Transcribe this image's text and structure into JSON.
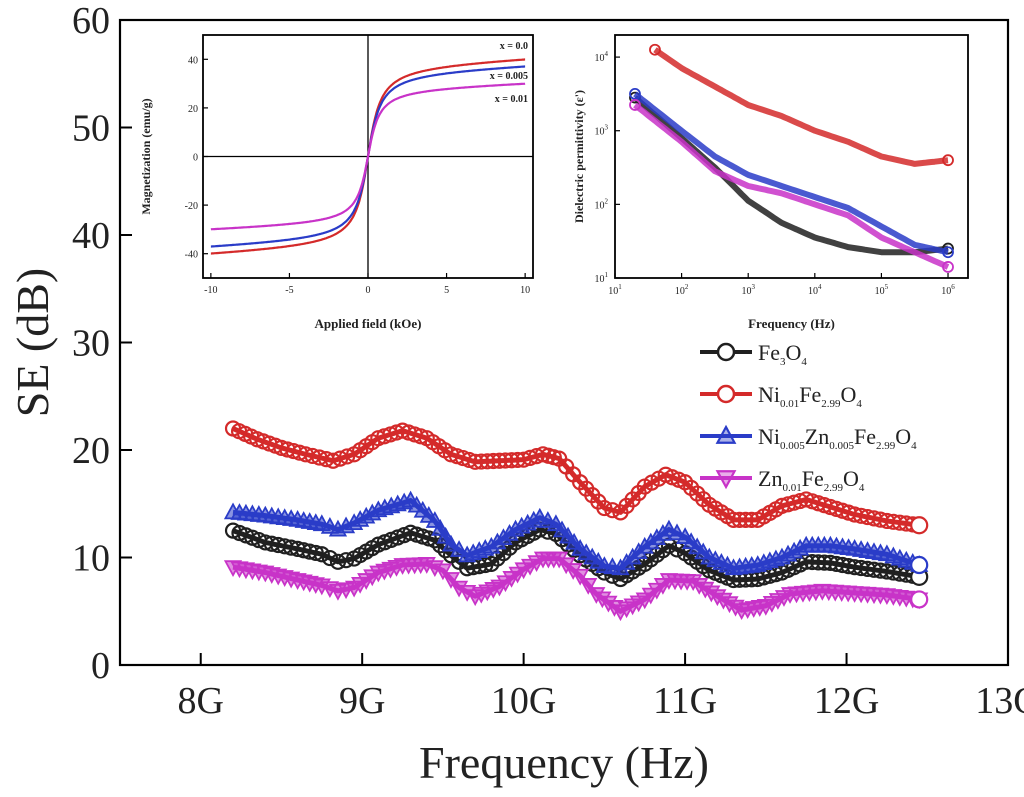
{
  "chart_data": [
    {
      "id": "main",
      "type": "line",
      "xlabel": "Frequency (Hz)",
      "ylabel": "SE (dB)",
      "xlim": [
        7.5,
        13
      ],
      "ylim": [
        0,
        60
      ],
      "xticks": [
        8,
        9,
        10,
        11,
        12,
        13
      ],
      "xtick_labels": [
        "8G",
        "9G",
        "10G",
        "11G",
        "12G",
        "13G"
      ],
      "yticks": [
        0,
        10,
        20,
        30,
        40,
        50,
        60
      ],
      "ytick_labels": [
        "0",
        "10",
        "20",
        "30",
        "40",
        "50",
        "60"
      ],
      "grid": false,
      "legend": "right, below insets",
      "legend_entries": [
        {
          "base": "Fe",
          "parts": [
            [
              "Fe",
              ""
            ],
            [
              "3",
              "sub"
            ],
            [
              "O",
              ""
            ],
            [
              "4",
              "sub"
            ]
          ]
        },
        {
          "base": "Ni",
          "parts": [
            [
              "Ni",
              ""
            ],
            [
              "0.01",
              "sub"
            ],
            [
              "Fe",
              ""
            ],
            [
              "2.99",
              "sub"
            ],
            [
              "O",
              ""
            ],
            [
              "4",
              "sub"
            ]
          ]
        },
        {
          "base": "Ni",
          "parts": [
            [
              "Ni",
              ""
            ],
            [
              "0.005",
              "sub"
            ],
            [
              "Zn",
              ""
            ],
            [
              "0.005",
              "sub"
            ],
            [
              "Fe",
              ""
            ],
            [
              "2.99",
              "sub"
            ],
            [
              "O",
              ""
            ],
            [
              "4",
              "sub"
            ]
          ]
        },
        {
          "base": "Zn",
          "parts": [
            [
              "Zn",
              ""
            ],
            [
              "0.01",
              "sub"
            ],
            [
              "Fe",
              ""
            ],
            [
              "2.99",
              "sub"
            ],
            [
              "O",
              ""
            ],
            [
              "4",
              "sub"
            ]
          ]
        }
      ],
      "series": [
        {
          "color": "#202020",
          "marker": "circle",
          "points": [
            [
              8.2,
              12.5
            ],
            [
              8.4,
              11.4
            ],
            [
              8.6,
              10.8
            ],
            [
              8.75,
              10.3
            ],
            [
              8.85,
              9.6
            ],
            [
              8.95,
              9.9
            ],
            [
              9.1,
              11.2
            ],
            [
              9.3,
              12.3
            ],
            [
              9.45,
              11.6
            ],
            [
              9.55,
              10.2
            ],
            [
              9.65,
              9.0
            ],
            [
              9.8,
              9.4
            ],
            [
              9.95,
              11.4
            ],
            [
              10.1,
              12.6
            ],
            [
              10.2,
              12.2
            ],
            [
              10.35,
              10.2
            ],
            [
              10.5,
              8.6
            ],
            [
              10.6,
              8.0
            ],
            [
              10.75,
              9.4
            ],
            [
              10.9,
              11.1
            ],
            [
              11.0,
              10.4
            ],
            [
              11.15,
              8.8
            ],
            [
              11.3,
              7.9
            ],
            [
              11.45,
              8.0
            ],
            [
              11.6,
              8.6
            ],
            [
              11.75,
              9.6
            ],
            [
              11.9,
              9.5
            ],
            [
              12.05,
              9.1
            ],
            [
              12.25,
              8.7
            ],
            [
              12.45,
              8.2
            ]
          ]
        },
        {
          "color": "#d42a2a",
          "marker": "circle",
          "points": [
            [
              8.2,
              22.0
            ],
            [
              8.35,
              21.0
            ],
            [
              8.5,
              20.2
            ],
            [
              8.65,
              19.6
            ],
            [
              8.82,
              19.0
            ],
            [
              8.95,
              19.6
            ],
            [
              9.1,
              21.1
            ],
            [
              9.25,
              21.8
            ],
            [
              9.4,
              21.1
            ],
            [
              9.55,
              19.6
            ],
            [
              9.7,
              18.9
            ],
            [
              9.85,
              19.0
            ],
            [
              10.0,
              19.1
            ],
            [
              10.12,
              19.6
            ],
            [
              10.22,
              19.2
            ],
            [
              10.35,
              17.0
            ],
            [
              10.5,
              14.6
            ],
            [
              10.6,
              14.2
            ],
            [
              10.75,
              16.6
            ],
            [
              10.88,
              17.7
            ],
            [
              11.0,
              17.0
            ],
            [
              11.15,
              14.9
            ],
            [
              11.3,
              13.5
            ],
            [
              11.45,
              13.5
            ],
            [
              11.6,
              14.8
            ],
            [
              11.75,
              15.4
            ],
            [
              11.9,
              14.7
            ],
            [
              12.05,
              14.0
            ],
            [
              12.25,
              13.4
            ],
            [
              12.45,
              13.0
            ]
          ]
        },
        {
          "color": "#2a3cc8",
          "marker": "triangle",
          "points": [
            [
              8.2,
              14.2
            ],
            [
              8.4,
              13.9
            ],
            [
              8.6,
              13.5
            ],
            [
              8.75,
              13.1
            ],
            [
              8.85,
              12.6
            ],
            [
              8.95,
              13.2
            ],
            [
              9.1,
              14.4
            ],
            [
              9.3,
              15.3
            ],
            [
              9.45,
              13.4
            ],
            [
              9.55,
              11.2
            ],
            [
              9.65,
              10.2
            ],
            [
              9.8,
              11.0
            ],
            [
              9.95,
              12.6
            ],
            [
              10.1,
              13.7
            ],
            [
              10.2,
              13.1
            ],
            [
              10.35,
              10.8
            ],
            [
              10.5,
              9.2
            ],
            [
              10.6,
              9.0
            ],
            [
              10.75,
              11.0
            ],
            [
              10.9,
              12.6
            ],
            [
              11.0,
              11.9
            ],
            [
              11.15,
              10.0
            ],
            [
              11.3,
              9.0
            ],
            [
              11.45,
              9.3
            ],
            [
              11.6,
              10.0
            ],
            [
              11.75,
              11.1
            ],
            [
              11.9,
              11.1
            ],
            [
              12.05,
              10.8
            ],
            [
              12.25,
              10.3
            ],
            [
              12.45,
              9.3
            ]
          ]
        },
        {
          "color": "#c833c8",
          "marker": "triangle-down",
          "points": [
            [
              8.2,
              9.1
            ],
            [
              8.4,
              8.6
            ],
            [
              8.6,
              7.9
            ],
            [
              8.75,
              7.4
            ],
            [
              8.85,
              6.9
            ],
            [
              8.95,
              7.2
            ],
            [
              9.1,
              8.6
            ],
            [
              9.25,
              9.3
            ],
            [
              9.4,
              9.4
            ],
            [
              9.5,
              8.8
            ],
            [
              9.6,
              7.2
            ],
            [
              9.7,
              6.4
            ],
            [
              9.85,
              7.3
            ],
            [
              10.0,
              8.9
            ],
            [
              10.12,
              9.9
            ],
            [
              10.22,
              9.9
            ],
            [
              10.35,
              8.3
            ],
            [
              10.45,
              6.6
            ],
            [
              10.6,
              5.0
            ],
            [
              10.75,
              6.1
            ],
            [
              10.9,
              7.9
            ],
            [
              11.05,
              7.8
            ],
            [
              11.2,
              6.4
            ],
            [
              11.35,
              5.1
            ],
            [
              11.5,
              5.5
            ],
            [
              11.65,
              6.6
            ],
            [
              11.85,
              6.9
            ],
            [
              12.05,
              6.7
            ],
            [
              12.25,
              6.5
            ],
            [
              12.45,
              6.1
            ]
          ]
        }
      ]
    },
    {
      "id": "inset1",
      "type": "line",
      "xlabel": "Applied field (kOe)",
      "ylabel": "Magnetization (emu/g)",
      "xlim": [
        -10.5,
        10.5
      ],
      "ylim": [
        -50,
        50
      ],
      "xticks": [
        -10,
        -5,
        0,
        5,
        10
      ],
      "xtick_labels": [
        "-10",
        "-5",
        "0",
        "5",
        "10"
      ],
      "yticks": [
        -40,
        -20,
        0,
        20,
        40
      ],
      "ytick_labels": [
        "-40",
        "-20",
        "0",
        "20",
        "40"
      ],
      "grid": false,
      "curve_labels": [
        "x = 0.0",
        "x = 0.005",
        "x = 0.01"
      ],
      "series": [
        {
          "color": "#d42a2a",
          "ms": 41.5,
          "h0": 0.95
        },
        {
          "color": "#2a3cc8",
          "ms": 38.5,
          "h0": 0.95
        },
        {
          "color": "#c833c8",
          "ms": 31.0,
          "h0": 0.85
        }
      ]
    },
    {
      "id": "inset2",
      "type": "line",
      "xlabel": "Frequency (Hz)",
      "ylabel": "Dielectric permittivity (ε')",
      "xscale": "log",
      "yscale": "log",
      "xlim": [
        1,
        6.3
      ],
      "ylim": [
        1,
        4.3
      ],
      "xticks": [
        1,
        2,
        3,
        4,
        5,
        6
      ],
      "xtick_labels": [
        "10",
        "10",
        "10",
        "10",
        "10",
        "10"
      ],
      "xtick_exponents": [
        "1",
        "2",
        "3",
        "4",
        "5",
        "6"
      ],
      "yticks": [
        1,
        2,
        3,
        4
      ],
      "ytick_labels": [
        "10",
        "10",
        "10",
        "10"
      ],
      "ytick_exponents": [
        "1",
        "2",
        "3",
        "4"
      ],
      "grid": false,
      "series": [
        {
          "color": "#202020",
          "points": [
            [
              1.3,
              3.45
            ],
            [
              2.0,
              2.9
            ],
            [
              2.5,
              2.5
            ],
            [
              3.0,
              2.05
            ],
            [
              3.5,
              1.75
            ],
            [
              4.0,
              1.55
            ],
            [
              4.5,
              1.42
            ],
            [
              5.0,
              1.35
            ],
            [
              5.5,
              1.35
            ],
            [
              6.0,
              1.4
            ]
          ]
        },
        {
          "color": "#d42a2a",
          "points": [
            [
              1.6,
              4.1
            ],
            [
              2.0,
              3.85
            ],
            [
              2.5,
              3.6
            ],
            [
              3.0,
              3.35
            ],
            [
              3.5,
              3.2
            ],
            [
              4.0,
              3.0
            ],
            [
              4.5,
              2.85
            ],
            [
              5.0,
              2.65
            ],
            [
              5.5,
              2.55
            ],
            [
              6.0,
              2.6
            ]
          ]
        },
        {
          "color": "#2a3cc8",
          "points": [
            [
              1.3,
              3.5
            ],
            [
              2.0,
              3.0
            ],
            [
              2.5,
              2.65
            ],
            [
              3.0,
              2.4
            ],
            [
              3.5,
              2.25
            ],
            [
              4.0,
              2.1
            ],
            [
              4.5,
              1.95
            ],
            [
              5.0,
              1.7
            ],
            [
              5.5,
              1.45
            ],
            [
              6.0,
              1.35
            ]
          ]
        },
        {
          "color": "#c833c8",
          "points": [
            [
              1.3,
              3.35
            ],
            [
              2.0,
              2.85
            ],
            [
              2.5,
              2.45
            ],
            [
              3.0,
              2.25
            ],
            [
              3.5,
              2.15
            ],
            [
              4.0,
              2.0
            ],
            [
              4.5,
              1.85
            ],
            [
              5.0,
              1.55
            ],
            [
              5.5,
              1.35
            ],
            [
              6.0,
              1.15
            ]
          ]
        }
      ]
    }
  ]
}
